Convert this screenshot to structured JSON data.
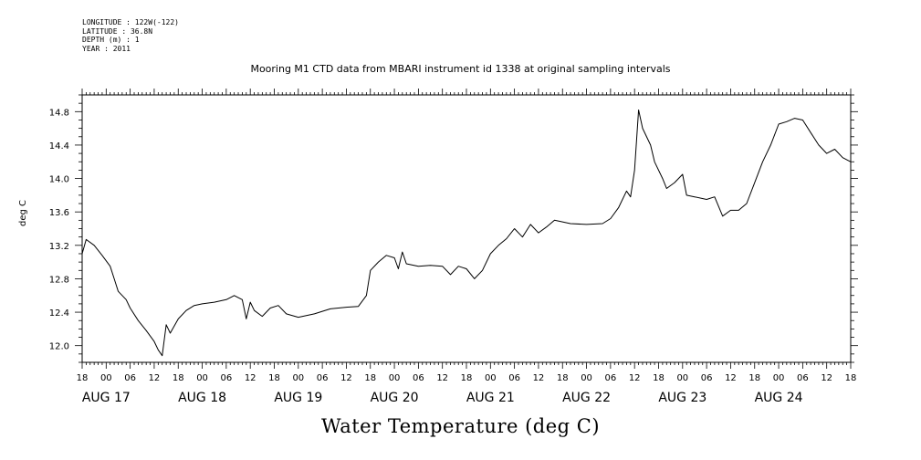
{
  "header": {
    "meta_lines": [
      "LONGITUDE : 122W(-122)",
      "LATITUDE : 36.8N",
      "DEPTH (m) : 1",
      "YEAR : 2011"
    ],
    "plot_title": "Mooring M1 CTD data from MBARI instrument id 1338 at original sampling intervals"
  },
  "chart_data": {
    "type": "line",
    "title": "Mooring M1 CTD data from MBARI instrument id 1338 at original sampling intervals",
    "xlabel": "Water Temperature (deg C)",
    "ylabel": "deg C",
    "xlim": [
      "2011-08-16T18:00",
      "2011-08-24T18:00"
    ],
    "ylim": [
      11.8,
      15.0
    ],
    "yticks": [
      "12.0",
      "12.4",
      "12.8",
      "13.2",
      "13.6",
      "14.0",
      "14.4",
      "14.8"
    ],
    "hour_tick_labels": [
      "18",
      "00",
      "06",
      "12",
      "18",
      "00",
      "06",
      "12",
      "18",
      "00",
      "06",
      "12",
      "18",
      "00",
      "06",
      "12",
      "18",
      "00",
      "06",
      "12",
      "18",
      "00",
      "06",
      "12",
      "18",
      "00",
      "06",
      "12",
      "18",
      "00",
      "06",
      "12",
      "18"
    ],
    "day_labels": [
      {
        "label": "AUG 17",
        "date": "2011-08-17"
      },
      {
        "label": "AUG 18",
        "date": "2011-08-18"
      },
      {
        "label": "AUG 19",
        "date": "2011-08-19"
      },
      {
        "label": "AUG 20",
        "date": "2011-08-20"
      },
      {
        "label": "AUG 21",
        "date": "2011-08-21"
      },
      {
        "label": "AUG 22",
        "date": "2011-08-22"
      },
      {
        "label": "AUG 23",
        "date": "2011-08-23"
      },
      {
        "label": "AUG 24",
        "date": "2011-08-24"
      }
    ],
    "grid": false,
    "series": [
      {
        "color": "#000000",
        "points": [
          [
            "2011-08-16T18:00",
            13.1
          ],
          [
            "2011-08-16T19:00",
            13.27
          ],
          [
            "2011-08-16T21:00",
            13.2
          ],
          [
            "2011-08-16T23:00",
            13.08
          ],
          [
            "2011-08-17T01:00",
            12.95
          ],
          [
            "2011-08-17T02:00",
            12.8
          ],
          [
            "2011-08-17T03:00",
            12.65
          ],
          [
            "2011-08-17T05:00",
            12.55
          ],
          [
            "2011-08-17T06:00",
            12.45
          ],
          [
            "2011-08-17T08:00",
            12.3
          ],
          [
            "2011-08-17T10:00",
            12.18
          ],
          [
            "2011-08-17T12:00",
            12.05
          ],
          [
            "2011-08-17T13:00",
            11.95
          ],
          [
            "2011-08-17T14:00",
            11.88
          ],
          [
            "2011-08-17T15:00",
            12.25
          ],
          [
            "2011-08-17T16:00",
            12.15
          ],
          [
            "2011-08-17T18:00",
            12.32
          ],
          [
            "2011-08-17T20:00",
            12.42
          ],
          [
            "2011-08-17T22:00",
            12.48
          ],
          [
            "2011-08-18T00:00",
            12.5
          ],
          [
            "2011-08-18T03:00",
            12.52
          ],
          [
            "2011-08-18T06:00",
            12.55
          ],
          [
            "2011-08-18T08:00",
            12.6
          ],
          [
            "2011-08-18T10:00",
            12.55
          ],
          [
            "2011-08-18T11:00",
            12.32
          ],
          [
            "2011-08-18T12:00",
            12.52
          ],
          [
            "2011-08-18T13:00",
            12.42
          ],
          [
            "2011-08-18T15:00",
            12.35
          ],
          [
            "2011-08-18T17:00",
            12.45
          ],
          [
            "2011-08-18T19:00",
            12.48
          ],
          [
            "2011-08-18T21:00",
            12.38
          ],
          [
            "2011-08-19T00:00",
            12.34
          ],
          [
            "2011-08-19T04:00",
            12.38
          ],
          [
            "2011-08-19T08:00",
            12.44
          ],
          [
            "2011-08-19T12:00",
            12.46
          ],
          [
            "2011-08-19T15:00",
            12.47
          ],
          [
            "2011-08-19T17:00",
            12.6
          ],
          [
            "2011-08-19T18:00",
            12.9
          ],
          [
            "2011-08-19T20:00",
            13.0
          ],
          [
            "2011-08-19T22:00",
            13.08
          ],
          [
            "2011-08-20T00:00",
            13.05
          ],
          [
            "2011-08-20T01:00",
            12.92
          ],
          [
            "2011-08-20T02:00",
            13.12
          ],
          [
            "2011-08-20T03:00",
            12.98
          ],
          [
            "2011-08-20T06:00",
            12.95
          ],
          [
            "2011-08-20T09:00",
            12.96
          ],
          [
            "2011-08-20T12:00",
            12.95
          ],
          [
            "2011-08-20T14:00",
            12.85
          ],
          [
            "2011-08-20T16:00",
            12.95
          ],
          [
            "2011-08-20T18:00",
            12.92
          ],
          [
            "2011-08-20T20:00",
            12.8
          ],
          [
            "2011-08-20T22:00",
            12.9
          ],
          [
            "2011-08-21T00:00",
            13.1
          ],
          [
            "2011-08-21T02:00",
            13.2
          ],
          [
            "2011-08-21T04:00",
            13.28
          ],
          [
            "2011-08-21T06:00",
            13.4
          ],
          [
            "2011-08-21T08:00",
            13.3
          ],
          [
            "2011-08-21T10:00",
            13.45
          ],
          [
            "2011-08-21T12:00",
            13.35
          ],
          [
            "2011-08-21T14:00",
            13.42
          ],
          [
            "2011-08-21T16:00",
            13.5
          ],
          [
            "2011-08-21T20:00",
            13.46
          ],
          [
            "2011-08-22T00:00",
            13.45
          ],
          [
            "2011-08-22T04:00",
            13.46
          ],
          [
            "2011-08-22T06:00",
            13.52
          ],
          [
            "2011-08-22T08:00",
            13.65
          ],
          [
            "2011-08-22T10:00",
            13.85
          ],
          [
            "2011-08-22T11:00",
            13.78
          ],
          [
            "2011-08-22T12:00",
            14.1
          ],
          [
            "2011-08-22T13:00",
            14.82
          ],
          [
            "2011-08-22T14:00",
            14.6
          ],
          [
            "2011-08-22T16:00",
            14.4
          ],
          [
            "2011-08-22T17:00",
            14.2
          ],
          [
            "2011-08-22T19:00",
            14.0
          ],
          [
            "2011-08-22T20:00",
            13.88
          ],
          [
            "2011-08-22T22:00",
            13.95
          ],
          [
            "2011-08-23T00:00",
            14.05
          ],
          [
            "2011-08-23T01:00",
            13.8
          ],
          [
            "2011-08-23T03:00",
            13.78
          ],
          [
            "2011-08-23T06:00",
            13.75
          ],
          [
            "2011-08-23T08:00",
            13.78
          ],
          [
            "2011-08-23T10:00",
            13.55
          ],
          [
            "2011-08-23T12:00",
            13.62
          ],
          [
            "2011-08-23T14:00",
            13.62
          ],
          [
            "2011-08-23T16:00",
            13.7
          ],
          [
            "2011-08-23T18:00",
            13.95
          ],
          [
            "2011-08-23T20:00",
            14.2
          ],
          [
            "2011-08-23T22:00",
            14.4
          ],
          [
            "2011-08-24T00:00",
            14.65
          ],
          [
            "2011-08-24T02:00",
            14.68
          ],
          [
            "2011-08-24T04:00",
            14.72
          ],
          [
            "2011-08-24T06:00",
            14.7
          ],
          [
            "2011-08-24T08:00",
            14.55
          ],
          [
            "2011-08-24T10:00",
            14.4
          ],
          [
            "2011-08-24T12:00",
            14.3
          ],
          [
            "2011-08-24T14:00",
            14.35
          ],
          [
            "2011-08-24T16:00",
            14.25
          ],
          [
            "2011-08-24T18:00",
            14.2
          ]
        ]
      }
    ]
  }
}
